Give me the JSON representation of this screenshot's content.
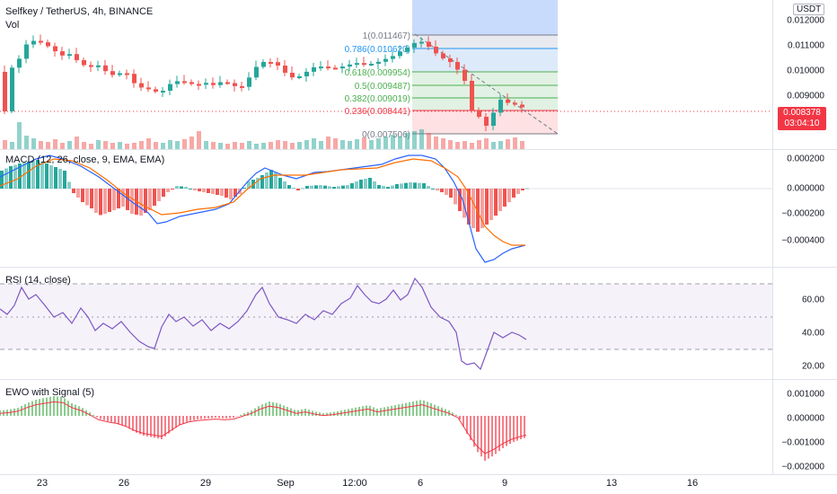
{
  "header": {
    "symbol_line": "Selfkey / TetherUS, 4h, BINANCE",
    "volume_label": "Vol"
  },
  "axis": {
    "currency": "USDT",
    "price_ticks": [
      "0.012000",
      "0.011000",
      "0.010000",
      "0.009000"
    ],
    "last_price": "0.008378",
    "countdown": "03:04:10",
    "macd_ticks": [
      "0.000200",
      "0.000000",
      "−0.000200",
      "−0.000400"
    ],
    "rsi_ticks": [
      "60.00",
      "40.00",
      "20.00"
    ],
    "ewo_ticks": [
      "0.001000",
      "0.000000",
      "−0.001000",
      "−0.002000"
    ]
  },
  "fib_levels": [
    {
      "label": "1(0.011467)",
      "color": "#787b86"
    },
    {
      "label": "0.786(0.010620)",
      "color": "#2196f3"
    },
    {
      "label": "0.618(0.009954)",
      "color": "#4caf50"
    },
    {
      "label": "0.5(0.009487)",
      "color": "#4caf50"
    },
    {
      "label": "0.382(0.009019)",
      "color": "#4caf50"
    },
    {
      "label": "0.236(0.008441)",
      "color": "#f23645"
    },
    {
      "label": "0(0.007506)",
      "color": "#787b86"
    }
  ],
  "indicators": {
    "macd_label": "MACD (12, 26, close, 9, EMA, EMA)",
    "rsi_label": "RSI (14, close)",
    "ewo_label": "EWO with Signal (5)"
  },
  "x_axis": [
    "23",
    "26",
    "29",
    "Sep",
    "12:00",
    "6",
    "9",
    "13",
    "16"
  ],
  "colors": {
    "up": "#26a69a",
    "down": "#ef5350",
    "macd_line": "#2962ff",
    "signal_line": "#ff6d00",
    "rsi_line": "#7e57c2",
    "ewo_up": "#4caf50",
    "ewo_down": "#f23645"
  },
  "chart_data": {
    "type": "candlestick",
    "price_axis": [
      0.009,
      0.01,
      0.011,
      0.012
    ],
    "last_price": 0.008378,
    "fib_retracement": {
      "1": 0.011467,
      "0.786": 0.01062,
      "0.618": 0.009954,
      "0.5": 0.009487,
      "0.382": 0.009019,
      "0.236": 0.008441,
      "0": 0.007506
    },
    "rsi_levels": [
      70,
      50,
      30
    ],
    "rsi_axis": [
      20,
      40,
      60
    ],
    "macd_axis": [
      -0.0004,
      -0.0002,
      0,
      0.0002
    ],
    "ewo_axis": [
      -0.002,
      -0.001,
      0,
      0.001
    ]
  }
}
